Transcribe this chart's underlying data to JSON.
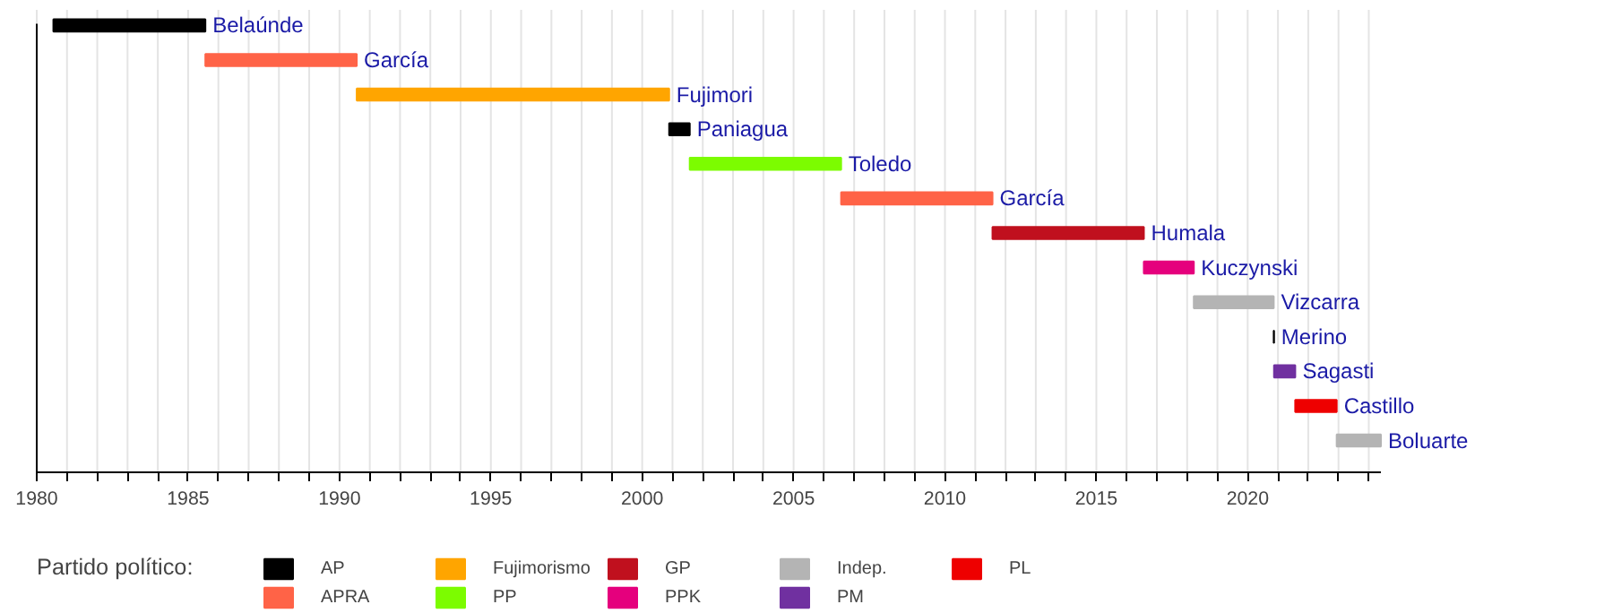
{
  "chart_data": {
    "type": "bar",
    "orientation": "horizontal",
    "categories": [
      "Belaúnde",
      "García",
      "Fujimori",
      "Paniagua",
      "Toledo",
      "García",
      "Humala",
      "Kuczynski",
      "Vizcarra",
      "Merino",
      "Sagasti",
      "Castillo",
      "Boluarte"
    ],
    "series": [
      {
        "name": "AP",
        "color": "#000000",
        "base": [
          1980.55,
          null,
          null,
          2000.89,
          null,
          null,
          null,
          null,
          null,
          2020.86,
          null,
          null,
          null
        ],
        "values": [
          5.02,
          null,
          null,
          0.68,
          null,
          null,
          null,
          null,
          null,
          0.01,
          null,
          null,
          null
        ]
      },
      {
        "name": "APRA",
        "color": "#ff6347",
        "base": [
          null,
          1985.57,
          null,
          null,
          null,
          2006.57,
          null,
          null,
          null,
          null,
          null,
          null,
          null
        ],
        "values": [
          null,
          5.0,
          null,
          null,
          null,
          5.0,
          null,
          null,
          null,
          null,
          null,
          null,
          null
        ]
      },
      {
        "name": "Fujimorismo",
        "color": "#ffa500",
        "base": [
          null,
          null,
          1990.57,
          null,
          null,
          null,
          null,
          null,
          null,
          null,
          null,
          null,
          null
        ],
        "values": [
          null,
          null,
          10.32,
          null,
          null,
          null,
          null,
          null,
          null,
          null,
          null,
          null,
          null
        ]
      },
      {
        "name": "PP",
        "color": "#7cfc00",
        "base": [
          null,
          null,
          null,
          null,
          2001.57,
          null,
          null,
          null,
          null,
          null,
          null,
          null,
          null
        ],
        "values": [
          null,
          null,
          null,
          null,
          5.0,
          null,
          null,
          null,
          null,
          null,
          null,
          null,
          null
        ]
      },
      {
        "name": "GP",
        "color": "#c0101e",
        "base": [
          null,
          null,
          null,
          null,
          null,
          null,
          2011.57,
          null,
          null,
          null,
          null,
          null,
          null
        ],
        "values": [
          null,
          null,
          null,
          null,
          null,
          null,
          5.0,
          null,
          null,
          null,
          null,
          null,
          null
        ]
      },
      {
        "name": "PPK",
        "color": "#e5007d",
        "base": [
          null,
          null,
          null,
          null,
          null,
          null,
          null,
          2016.57,
          null,
          null,
          null,
          null,
          null
        ],
        "values": [
          null,
          null,
          null,
          null,
          null,
          null,
          null,
          1.65,
          null,
          null,
          null,
          null,
          null
        ]
      },
      {
        "name": "Indep.",
        "color": "#b4b4b4",
        "base": [
          null,
          null,
          null,
          null,
          null,
          null,
          null,
          null,
          2018.22,
          null,
          null,
          null,
          2022.94
        ],
        "values": [
          null,
          null,
          null,
          null,
          null,
          null,
          null,
          null,
          2.64,
          null,
          null,
          null,
          1.46
        ]
      },
      {
        "name": "PM",
        "color": "#7030a0",
        "base": [
          null,
          null,
          null,
          null,
          null,
          null,
          null,
          null,
          null,
          null,
          2020.87,
          null,
          null
        ],
        "values": [
          null,
          null,
          null,
          null,
          null,
          null,
          null,
          null,
          null,
          null,
          0.7,
          null,
          null
        ]
      },
      {
        "name": "PL",
        "color": "#ee0000",
        "base": [
          null,
          null,
          null,
          null,
          null,
          null,
          null,
          null,
          null,
          null,
          null,
          2021.57,
          null
        ],
        "values": [
          null,
          null,
          null,
          null,
          null,
          null,
          null,
          null,
          null,
          null,
          null,
          1.37,
          null
        ]
      }
    ],
    "legend_title": "Partido político:",
    "legend": "bottom",
    "xlim": [
      1980,
      2024.4
    ],
    "xticks": [
      1980,
      {
        "value": 1981,
        "label": null
      },
      {
        "value": 1982,
        "label": null
      },
      {
        "value": 1983,
        "label": null
      },
      {
        "value": 1984,
        "label": null
      },
      1985,
      {
        "value": 1986,
        "label": null
      },
      {
        "value": 1987,
        "label": null
      },
      {
        "value": 1988,
        "label": null
      },
      {
        "value": 1989,
        "label": null
      },
      1990,
      {
        "value": 1991,
        "label": null
      },
      {
        "value": 1992,
        "label": null
      },
      {
        "value": 1993,
        "label": null
      },
      {
        "value": 1994,
        "label": null
      },
      1995,
      {
        "value": 1996,
        "label": null
      },
      {
        "value": 1997,
        "label": null
      },
      {
        "value": 1998,
        "label": null
      },
      {
        "value": 1999,
        "label": null
      },
      2000,
      {
        "value": 2001,
        "label": null
      },
      {
        "value": 2002,
        "label": null
      },
      {
        "value": 2003,
        "label": null
      },
      {
        "value": 2004,
        "label": null
      },
      2005,
      {
        "value": 2006,
        "label": null
      },
      {
        "value": 2007,
        "label": null
      },
      {
        "value": 2008,
        "label": null
      },
      {
        "value": 2009,
        "label": null
      },
      2010,
      {
        "value": 2011,
        "label": null
      },
      {
        "value": 2012,
        "label": null
      },
      {
        "value": 2013,
        "label": null
      },
      {
        "value": 2014,
        "label": null
      },
      2015,
      {
        "value": 2016,
        "label": null
      },
      {
        "value": 2017,
        "label": null
      },
      {
        "value": 2018,
        "label": null
      },
      {
        "value": 2019,
        "label": null
      },
      2020,
      {
        "value": 2021,
        "label": null
      },
      {
        "value": 2022,
        "label": null
      },
      {
        "value": 2023,
        "label": null
      },
      {
        "value": 2024,
        "label": null
      }
    ],
    "grid": "x"
  }
}
